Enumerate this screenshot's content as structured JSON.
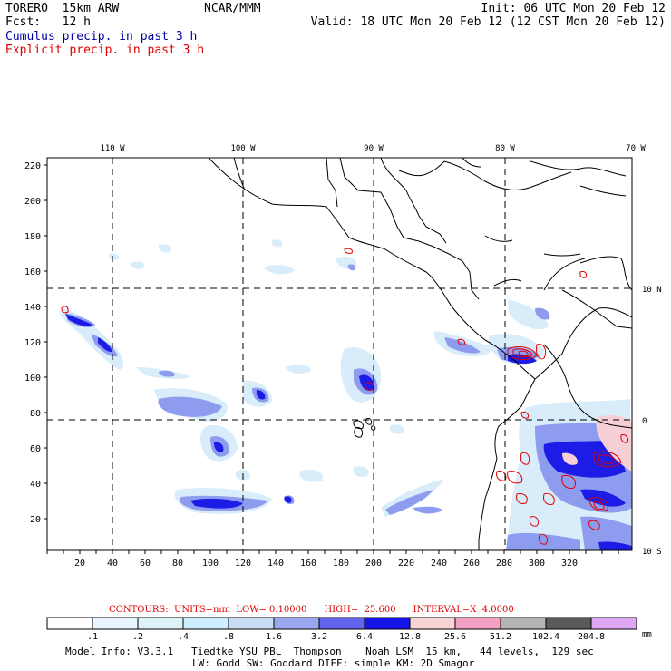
{
  "header": {
    "title": "TORERO  15km ARW",
    "model": "NCAR/MMM",
    "init": "Init: 06 UTC Mon 20 Feb 12",
    "fcst": "Fcst:   12 h",
    "valid": "Valid: 18 UTC Mon 20 Feb 12 (12 CST Mon 20 Feb 12)",
    "field_cumulus": "Cumulus precip. in past 3 h",
    "field_explicit": "Explicit precip. in past 3 h"
  },
  "map": {
    "lon_labels": [
      "110 W",
      "100 W",
      "90 W",
      "80 W",
      "70 W"
    ],
    "lat_labels": [
      "10 N",
      "0",
      "10 S"
    ],
    "x_ticks": [
      "20",
      "40",
      "60",
      "80",
      "100",
      "120",
      "140",
      "160",
      "180",
      "200",
      "220",
      "240",
      "260",
      "280",
      "300",
      "320"
    ],
    "y_ticks": [
      "20",
      "40",
      "60",
      "80",
      "100",
      "120",
      "140",
      "160",
      "180",
      "200",
      "220"
    ]
  },
  "contours": {
    "text": "CONTOURS:  UNITS=mm  LOW= 0.10000      HIGH=  25.600      INTERVAL=X  4.0000"
  },
  "colorbar": {
    "labels": [
      ".1",
      ".2",
      ".4",
      ".8",
      "1.6",
      "3.2",
      "6.4",
      "12.8",
      "25.6",
      "51.2",
      "102.4",
      "204.8"
    ],
    "colors": [
      "#ffffff",
      "#e8f4ff",
      "#ddf3f8",
      "#cceeff",
      "#c8dcf4",
      "#9aa8f0",
      "#6064ec",
      "#1414e8",
      "#f8d4d4",
      "#f4a0c4",
      "#b4b4b4",
      "#5a5a5a",
      "#e0a8f4"
    ],
    "unit": "mm"
  },
  "footer": {
    "line1": "Model Info: V3.3.1   Tiedtke YSU PBL  Thompson    Noah LSM  15 km,   44 levels,  129 sec",
    "line2": "LW: Godd SW: Goddard DIFF: simple KM: 2D Smagor"
  }
}
